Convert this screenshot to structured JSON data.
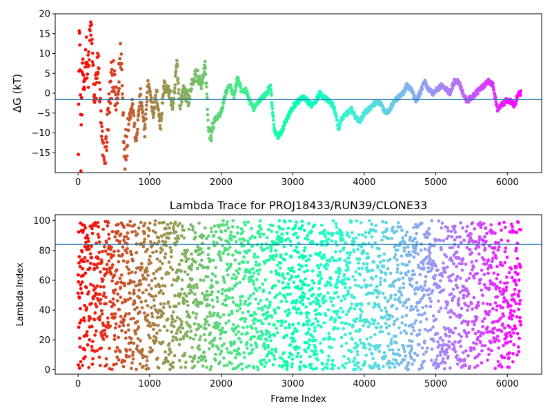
{
  "figure": {
    "bg": "#ffffff",
    "ref_color": "#1f77b4"
  },
  "chart_data": [
    {
      "type": "scatter",
      "title": "",
      "xlabel": "",
      "ylabel": "ΔG (kT)",
      "xlim": [
        -320,
        6480
      ],
      "ylim": [
        -20,
        20
      ],
      "xticks": [
        0,
        1000,
        2000,
        3000,
        4000,
        5000,
        6000
      ],
      "xtick_labels": [
        "0",
        "1000",
        "2000",
        "3000",
        "4000",
        "5000",
        "6000"
      ],
      "yticks": [
        -15,
        -10,
        -5,
        0,
        5,
        10,
        15,
        20
      ],
      "ytick_labels": [
        "−15",
        "−10",
        "−5",
        "0",
        "5",
        "10",
        "15",
        "20"
      ],
      "reference_line_y": -1.6,
      "grid": false,
      "colormap": "rainbow (red at frame 0 → violet at frame ~6200)",
      "anchors": [
        [
          0,
          -18
        ],
        [
          20,
          19
        ],
        [
          40,
          -15
        ],
        [
          60,
          8
        ],
        [
          80,
          -2
        ],
        [
          110,
          12
        ],
        [
          140,
          5
        ],
        [
          180,
          18
        ],
        [
          230,
          -3
        ],
        [
          280,
          9
        ],
        [
          330,
          -12
        ],
        [
          370,
          -19
        ],
        [
          420,
          -6
        ],
        [
          480,
          6
        ],
        [
          540,
          -4
        ],
        [
          600,
          11
        ],
        [
          650,
          -16
        ],
        [
          710,
          -7
        ],
        [
          760,
          -2
        ],
        [
          810,
          -13
        ],
        [
          870,
          0
        ],
        [
          930,
          -10
        ],
        [
          980,
          3
        ],
        [
          1050,
          -5
        ],
        [
          1100,
          0
        ],
        [
          1150,
          -9
        ],
        [
          1200,
          2
        ],
        [
          1280,
          0
        ],
        [
          1330,
          -4
        ],
        [
          1380,
          8
        ],
        [
          1420,
          -3
        ],
        [
          1480,
          1
        ],
        [
          1540,
          -2
        ],
        [
          1600,
          3
        ],
        [
          1660,
          5
        ],
        [
          1720,
          2
        ],
        [
          1780,
          7
        ],
        [
          1820,
          -9
        ],
        [
          1860,
          -11
        ],
        [
          1900,
          -7
        ],
        [
          1950,
          -6
        ],
        [
          2000,
          -5
        ],
        [
          2060,
          0
        ],
        [
          2120,
          2
        ],
        [
          2180,
          -1
        ],
        [
          2230,
          4
        ],
        [
          2290,
          0
        ],
        [
          2340,
          1
        ],
        [
          2400,
          -2
        ],
        [
          2460,
          -4
        ],
        [
          2520,
          -2
        ],
        [
          2580,
          -1
        ],
        [
          2640,
          0
        ],
        [
          2690,
          2
        ],
        [
          2740,
          -9
        ],
        [
          2790,
          -11
        ],
        [
          2840,
          -10
        ],
        [
          2900,
          -7
        ],
        [
          2960,
          -5
        ],
        [
          3020,
          -3
        ],
        [
          3080,
          -2
        ],
        [
          3140,
          -1
        ],
        [
          3200,
          -2
        ],
        [
          3260,
          -3
        ],
        [
          3320,
          -2
        ],
        [
          3380,
          0
        ],
        [
          3440,
          -1
        ],
        [
          3500,
          -2
        ],
        [
          3560,
          -3
        ],
        [
          3600,
          -5
        ],
        [
          3640,
          -9
        ],
        [
          3700,
          -6
        ],
        [
          3760,
          -5
        ],
        [
          3820,
          -4
        ],
        [
          3880,
          -6
        ],
        [
          3940,
          -7
        ],
        [
          4000,
          -5
        ],
        [
          4060,
          -4
        ],
        [
          4120,
          -3
        ],
        [
          4180,
          -2
        ],
        [
          4240,
          -3
        ],
        [
          4300,
          -5
        ],
        [
          4360,
          -4
        ],
        [
          4420,
          -2
        ],
        [
          4480,
          -1
        ],
        [
          4540,
          0
        ],
        [
          4600,
          2
        ],
        [
          4660,
          1
        ],
        [
          4720,
          -2
        ],
        [
          4780,
          0
        ],
        [
          4840,
          3
        ],
        [
          4900,
          1
        ],
        [
          4960,
          0
        ],
        [
          5020,
          1
        ],
        [
          5080,
          2
        ],
        [
          5140,
          1
        ],
        [
          5200,
          0
        ],
        [
          5260,
          3
        ],
        [
          5320,
          3
        ],
        [
          5380,
          0
        ],
        [
          5440,
          -2
        ],
        [
          5500,
          -1
        ],
        [
          5560,
          0
        ],
        [
          5620,
          1
        ],
        [
          5680,
          2
        ],
        [
          5740,
          3
        ],
        [
          5800,
          2
        ],
        [
          5860,
          -4
        ],
        [
          5920,
          -3
        ],
        [
          5980,
          -2
        ],
        [
          6040,
          -2
        ],
        [
          6100,
          -3
        ],
        [
          6160,
          0
        ],
        [
          6190,
          0
        ]
      ]
    },
    {
      "type": "scatter",
      "title": "Lambda Trace for PROJ18433/RUN39/CLONE33",
      "xlabel": "Frame Index",
      "ylabel": "Lambda Index",
      "xlim": [
        -320,
        6480
      ],
      "ylim": [
        -3,
        104
      ],
      "xticks": [
        0,
        1000,
        2000,
        3000,
        4000,
        5000,
        6000
      ],
      "xtick_labels": [
        "0",
        "1000",
        "2000",
        "3000",
        "4000",
        "5000",
        "6000"
      ],
      "yticks": [
        0,
        20,
        40,
        60,
        80,
        100
      ],
      "ytick_labels": [
        "0",
        "20",
        "40",
        "60",
        "80",
        "100"
      ],
      "reference_line_y": 84,
      "grid": false,
      "colormap": "rainbow (red at frame 0 → violet at frame ~6200)",
      "x_range": [
        0,
        6190
      ],
      "y_range": [
        0,
        100
      ],
      "n_points": 3000
    }
  ]
}
